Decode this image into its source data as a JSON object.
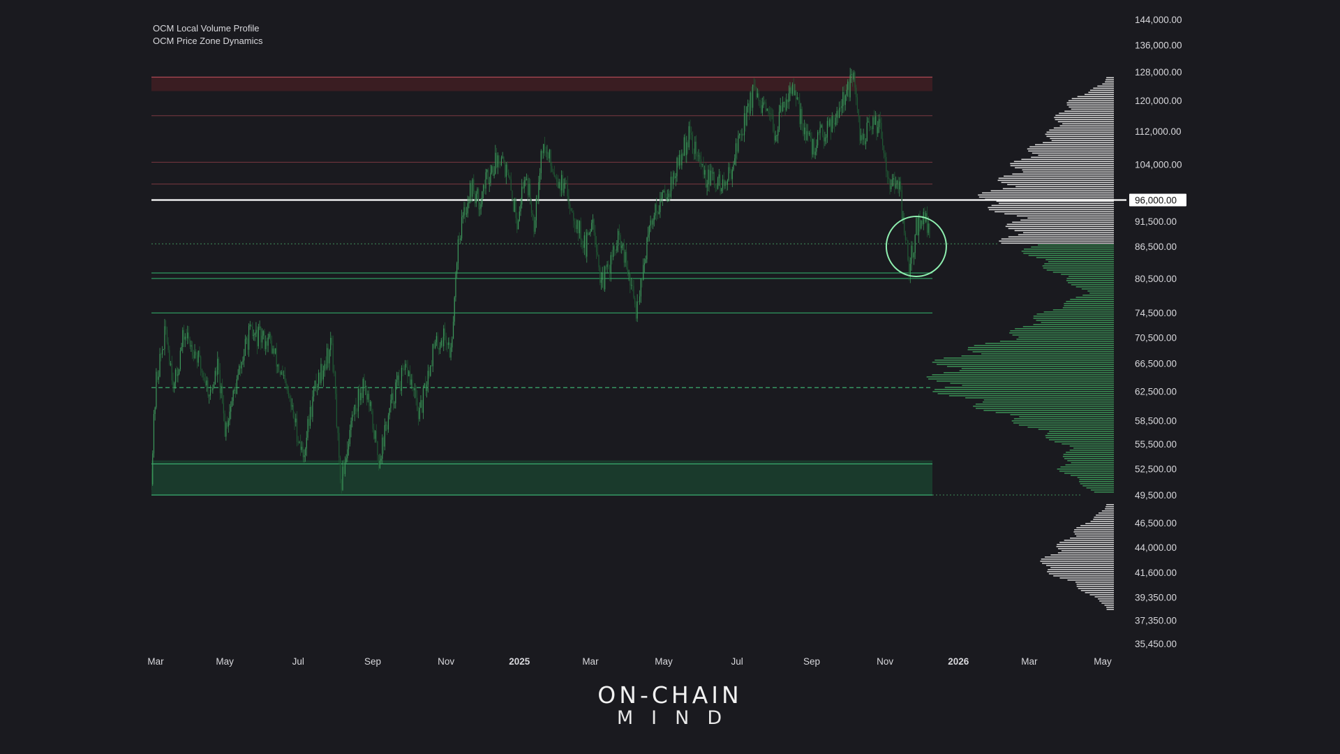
{
  "indicators": [
    "OCM Local Volume Profile",
    "OCM Price Zone Dynamics"
  ],
  "brand": {
    "line1": "ON-CHAIN",
    "line2": "MIND"
  },
  "colors": {
    "background": "#1a1a1f",
    "candle_up": "#3d9a5c",
    "candle_down": "#1f5a34",
    "resistance": "#b04a55",
    "support": "#3fbf7a",
    "profile_above": "#d8d8d8",
    "profile_below": "#3a8a52",
    "axis_text": "#d8d8dc",
    "current_price_line": "#ffffff"
  },
  "chart_data": {
    "type": "candlestick",
    "title": "",
    "x_axis": {
      "ticks": [
        "Mar",
        "May",
        "Jul",
        "Sep",
        "Nov",
        "2025",
        "Mar",
        "May",
        "Jul",
        "Sep",
        "Nov",
        "2026",
        "Mar",
        "May"
      ],
      "bold_ticks": [
        "2025",
        "2026"
      ],
      "range": [
        "2024-03",
        "2026-05"
      ]
    },
    "y_axis": {
      "scale": "log",
      "side": "right",
      "ticks": [
        144000,
        136000,
        128000,
        120000,
        112000,
        104000,
        96000,
        91500,
        86500,
        80500,
        74500,
        70500,
        66500,
        62500,
        58500,
        55500,
        52500,
        49500,
        46500,
        44000,
        41600,
        39350,
        37350,
        35450
      ],
      "tick_labels": [
        "144,000.00",
        "136,000.00",
        "128,000.00",
        "120,000.00",
        "112,000.00",
        "104,000.00",
        "96,000.00",
        "91,500.00",
        "86,500.00",
        "80,500.00",
        "74,500.00",
        "70,500.00",
        "66,500.00",
        "62,500.00",
        "58,500.00",
        "55,500.00",
        "52,500.00",
        "49,500.00",
        "46,500.00",
        "44,000.00",
        "41,600.00",
        "39,350.00",
        "37,350.00",
        "35,450.00"
      ],
      "range": [
        35450,
        144000
      ]
    },
    "current_price": {
      "value": 96000,
      "label": "96,000.00"
    },
    "price_path": [
      {
        "date": "2024-03-01",
        "price": 52000
      },
      {
        "date": "2024-03-05",
        "price": 64000
      },
      {
        "date": "2024-03-13",
        "price": 71500
      },
      {
        "date": "2024-03-20",
        "price": 63000
      },
      {
        "date": "2024-03-28",
        "price": 71000
      },
      {
        "date": "2024-04-05",
        "price": 69000
      },
      {
        "date": "2024-04-19",
        "price": 62000
      },
      {
        "date": "2024-04-25",
        "price": 66000
      },
      {
        "date": "2024-05-01",
        "price": 57500
      },
      {
        "date": "2024-05-10",
        "price": 63000
      },
      {
        "date": "2024-05-21",
        "price": 71000
      },
      {
        "date": "2024-06-07",
        "price": 70000
      },
      {
        "date": "2024-06-24",
        "price": 61000
      },
      {
        "date": "2024-07-05",
        "price": 54000
      },
      {
        "date": "2024-07-15",
        "price": 63000
      },
      {
        "date": "2024-07-29",
        "price": 69500
      },
      {
        "date": "2024-08-05",
        "price": 50000
      },
      {
        "date": "2024-08-15",
        "price": 59000
      },
      {
        "date": "2024-08-25",
        "price": 64000
      },
      {
        "date": "2024-09-06",
        "price": 53500
      },
      {
        "date": "2024-09-20",
        "price": 63000
      },
      {
        "date": "2024-09-30",
        "price": 65500
      },
      {
        "date": "2024-10-10",
        "price": 59000
      },
      {
        "date": "2024-10-21",
        "price": 68500
      },
      {
        "date": "2024-10-31",
        "price": 71000
      },
      {
        "date": "2024-11-05",
        "price": 68000
      },
      {
        "date": "2024-11-11",
        "price": 88000
      },
      {
        "date": "2024-11-22",
        "price": 99000
      },
      {
        "date": "2024-11-28",
        "price": 95500
      },
      {
        "date": "2024-12-05",
        "price": 101000
      },
      {
        "date": "2024-12-17",
        "price": 107000
      },
      {
        "date": "2024-12-30",
        "price": 92000
      },
      {
        "date": "2025-01-06",
        "price": 102000
      },
      {
        "date": "2025-01-13",
        "price": 91500
      },
      {
        "date": "2025-01-20",
        "price": 108500
      },
      {
        "date": "2025-01-31",
        "price": 102000
      },
      {
        "date": "2025-02-10",
        "price": 97000
      },
      {
        "date": "2025-02-25",
        "price": 86000
      },
      {
        "date": "2025-03-03",
        "price": 93000
      },
      {
        "date": "2025-03-10",
        "price": 79000
      },
      {
        "date": "2025-03-25",
        "price": 88000
      },
      {
        "date": "2025-04-08",
        "price": 75000
      },
      {
        "date": "2025-04-22",
        "price": 93000
      },
      {
        "date": "2025-05-08",
        "price": 100000
      },
      {
        "date": "2025-05-22",
        "price": 111000
      },
      {
        "date": "2025-06-05",
        "price": 101000
      },
      {
        "date": "2025-06-22",
        "price": 99000
      },
      {
        "date": "2025-07-14",
        "price": 122000
      },
      {
        "date": "2025-08-02",
        "price": 112000
      },
      {
        "date": "2025-08-14",
        "price": 124000
      },
      {
        "date": "2025-09-01",
        "price": 107500
      },
      {
        "date": "2025-09-20",
        "price": 116000
      },
      {
        "date": "2025-10-06",
        "price": 126000
      },
      {
        "date": "2025-10-11",
        "price": 110000
      },
      {
        "date": "2025-10-27",
        "price": 115000
      },
      {
        "date": "2025-11-04",
        "price": 101000
      },
      {
        "date": "2025-11-13",
        "price": 98000
      },
      {
        "date": "2025-11-21",
        "price": 82000
      },
      {
        "date": "2025-11-27",
        "price": 90000
      },
      {
        "date": "2025-12-03",
        "price": 93000
      },
      {
        "date": "2025-12-08",
        "price": 89000
      }
    ],
    "price_zones": {
      "resistance_band": [
        122600,
        126500
      ],
      "resistance_lines": [
        116000,
        104500,
        99500,
        96000
      ],
      "point_of_control_upper": 87000,
      "support_lines": [
        81500,
        80500,
        74500
      ],
      "point_of_control_lower": 63000,
      "support_band": [
        49500,
        53500
      ]
    },
    "volume_profile": {
      "above_current": [
        {
          "price": 125000,
          "volume": 0.05
        },
        {
          "price": 121000,
          "volume": 0.22
        },
        {
          "price": 117000,
          "volume": 0.3
        },
        {
          "price": 112000,
          "volume": 0.35
        },
        {
          "price": 108000,
          "volume": 0.45
        },
        {
          "price": 104000,
          "volume": 0.55
        },
        {
          "price": 100000,
          "volume": 0.62
        },
        {
          "price": 96000,
          "volume": 0.75
        },
        {
          "price": 92000,
          "volume": 0.55
        },
        {
          "price": 88000,
          "volume": 0.6
        }
      ],
      "below_current": [
        {
          "price": 86000,
          "volume": 0.5
        },
        {
          "price": 82000,
          "volume": 0.35
        },
        {
          "price": 78000,
          "volume": 0.15
        },
        {
          "price": 74500,
          "volume": 0.4
        },
        {
          "price": 70500,
          "volume": 0.6
        },
        {
          "price": 67500,
          "volume": 0.94
        },
        {
          "price": 63000,
          "volume": 1.0
        },
        {
          "price": 60000,
          "volume": 0.7
        },
        {
          "price": 57500,
          "volume": 0.45
        },
        {
          "price": 55000,
          "volume": 0.25
        },
        {
          "price": 52500,
          "volume": 0.3
        },
        {
          "price": 50000,
          "volume": 0.12
        }
      ],
      "lower_range": [
        {
          "price": 48000,
          "volume": 0.05
        },
        {
          "price": 46000,
          "volume": 0.2
        },
        {
          "price": 44000,
          "volume": 0.32
        },
        {
          "price": 42200,
          "volume": 0.42
        },
        {
          "price": 40500,
          "volume": 0.22
        },
        {
          "price": 38600,
          "volume": 0.04
        }
      ]
    },
    "annotation": {
      "type": "circle",
      "date": "2025-11-27",
      "price": 86500
    }
  }
}
